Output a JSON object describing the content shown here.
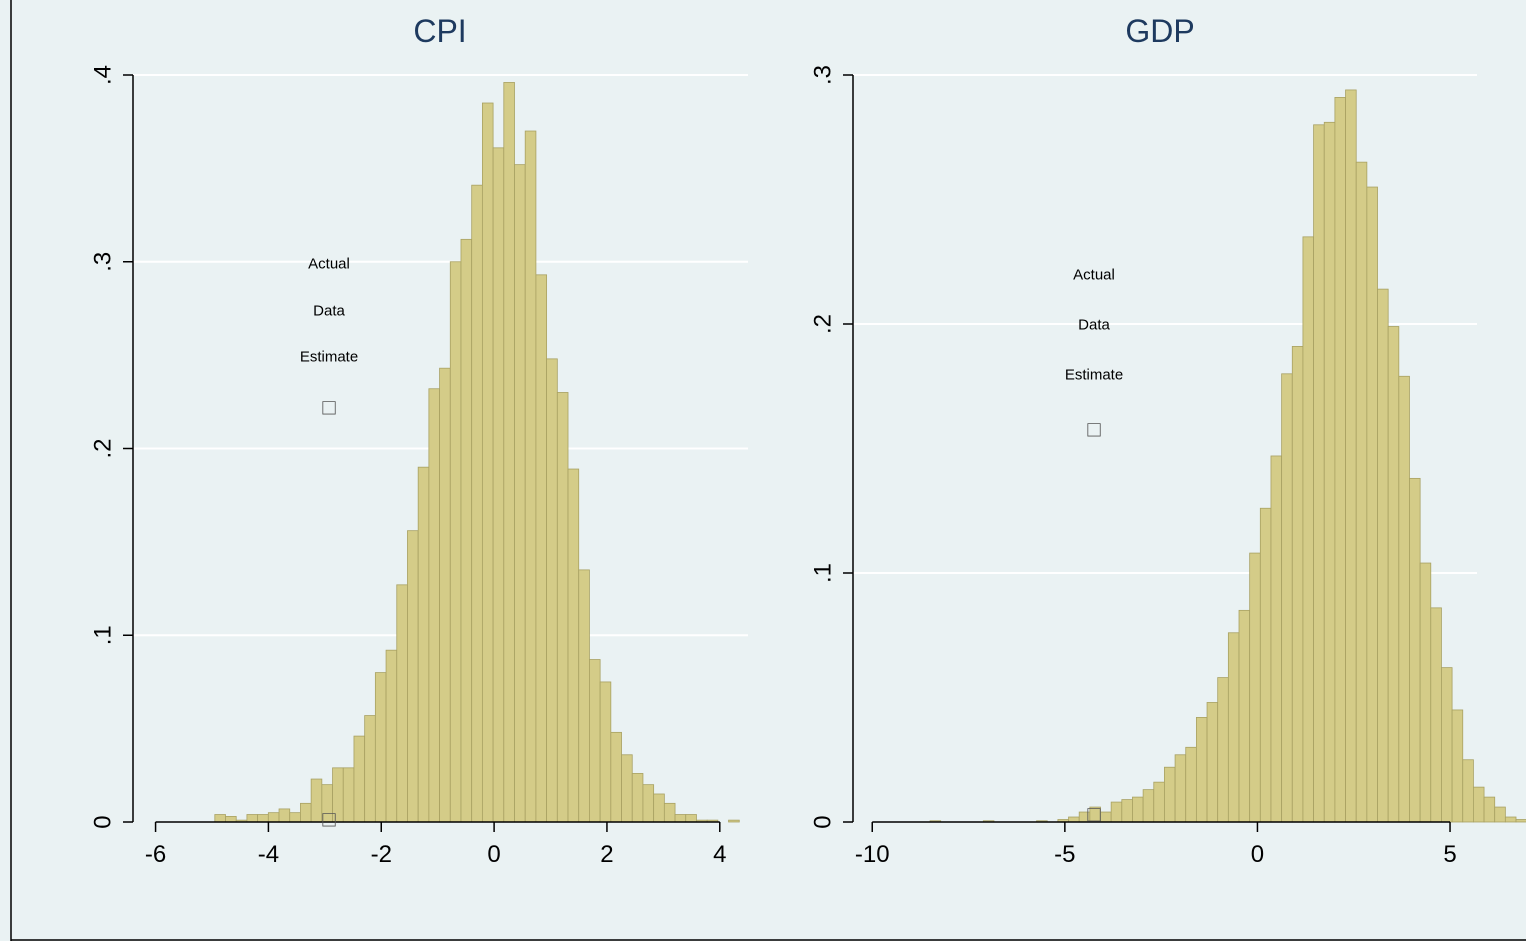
{
  "colors": {
    "background": "#eaf2f3",
    "bar_fill": "#d4cc88",
    "bar_stroke": "#a8a162",
    "grid": "#ffffff",
    "axis": "#000000",
    "title_text": "#1e3a5f",
    "outer_border": "#000000"
  },
  "chart_data": [
    {
      "type": "bar",
      "title": "CPI",
      "xlabel": "",
      "ylabel": "",
      "xlim": [
        -6.4,
        4.5
      ],
      "ylim": [
        0,
        0.4
      ],
      "grid": true,
      "xticks": [
        -6,
        -4,
        -2,
        0,
        2,
        4
      ],
      "xtick_labels": [
        "-6",
        "-4",
        "-2",
        "0",
        "2",
        "4"
      ],
      "yticks": [
        0,
        0.1,
        0.2,
        0.3,
        0.4
      ],
      "ytick_labels": [
        "0",
        ".1",
        ".2",
        ".3",
        ".4"
      ],
      "bin_start": -4.95,
      "bin_width": 0.1897,
      "values": [
        0.004,
        0.003,
        0.001,
        0.004,
        0.004,
        0.005,
        0.007,
        0.005,
        0.01,
        0.023,
        0.02,
        0.029,
        0.029,
        0.046,
        0.057,
        0.08,
        0.092,
        0.127,
        0.156,
        0.19,
        0.232,
        0.243,
        0.3,
        0.312,
        0.341,
        0.385,
        0.361,
        0.396,
        0.352,
        0.37,
        0.293,
        0.248,
        0.23,
        0.189,
        0.135,
        0.087,
        0.075,
        0.048,
        0.036,
        0.026,
        0.02,
        0.015,
        0.01,
        0.004,
        0.004,
        0.001,
        0.001,
        0.0,
        0.001
      ],
      "annotations": [
        "Actual",
        "Data",
        "Estimate"
      ],
      "marker_glyph": "□"
    },
    {
      "type": "bar",
      "title": "GDP",
      "xlabel": "",
      "ylabel": "",
      "xlim": [
        -10.5,
        5.7
      ],
      "ylim": [
        0,
        0.3
      ],
      "grid": true,
      "xticks": [
        -10,
        -5,
        0,
        5
      ],
      "xtick_labels": [
        "-10",
        "-5",
        "0",
        "5"
      ],
      "yticks": [
        0,
        0.1,
        0.2,
        0.3
      ],
      "ytick_labels": [
        "0",
        ".1",
        ".2",
        ".3"
      ],
      "bin_start": -8.5,
      "bin_width": 0.2766,
      "values": [
        0.0005,
        0.0,
        0.0,
        0.0,
        0.0,
        0.0005,
        0.0,
        0.0,
        0.0,
        0.0,
        0.0005,
        0.0,
        0.001,
        0.002,
        0.004,
        0.006,
        0.004,
        0.008,
        0.009,
        0.01,
        0.013,
        0.016,
        0.022,
        0.027,
        0.03,
        0.042,
        0.048,
        0.058,
        0.076,
        0.085,
        0.108,
        0.126,
        0.147,
        0.18,
        0.191,
        0.235,
        0.28,
        0.281,
        0.291,
        0.294,
        0.265,
        0.255,
        0.214,
        0.199,
        0.179,
        0.138,
        0.104,
        0.086,
        0.062,
        0.045,
        0.025,
        0.014,
        0.01,
        0.006,
        0.002,
        0.001,
        0.003,
        0.0,
        0.001,
        0.001
      ],
      "annotations": [
        "Actual",
        "Data",
        "Estimate"
      ],
      "marker_glyph": "□"
    }
  ]
}
